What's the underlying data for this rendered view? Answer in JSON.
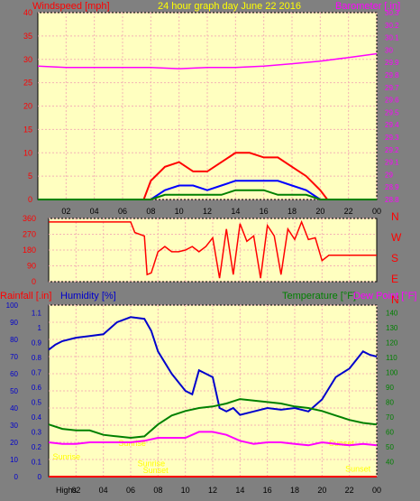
{
  "header": {
    "windspeed_label": "Windspeed [mph]",
    "title": "24 hour graph day   June 22 2016",
    "barometer_label": "Barometer [.in]"
  },
  "footer": {
    "highs_label": "Highs"
  },
  "colors": {
    "background": "#808080",
    "plot_bg": "#FFFFC0",
    "grid": "#F4B4B4",
    "wind_gust": "#FF0000",
    "wind_avg": "#0000FF",
    "wind_low": "#008000",
    "barometer": "#FF00FF",
    "direction": "#FF0000",
    "humidity": "#0000CC",
    "temperature": "#008000",
    "dew_point": "#FF00FF",
    "rainfall": "#FF0000",
    "sun_annotation": "#FFFF00"
  },
  "chart_data": [
    {
      "id": "wind_baro",
      "type": "line",
      "title": "24 hour graph day   June 22 2016",
      "xlabel": "",
      "x_ticks": [
        "02",
        "04",
        "06",
        "08",
        "10",
        "12",
        "14",
        "16",
        "18",
        "20",
        "22",
        "00"
      ],
      "xlim_hours": [
        0,
        24
      ],
      "left_axis": {
        "label": "Windspeed [mph]",
        "ylim": [
          0,
          40
        ],
        "ticks": [
          "0",
          "5",
          "10",
          "15",
          "20",
          "25",
          "30",
          "35",
          "40"
        ]
      },
      "right_axis": {
        "label": "Barometer [.in]",
        "ylim": [
          28.8,
          30.3
        ],
        "ticks": [
          "28.8",
          "28.9",
          "29",
          "29.1",
          "29.2",
          "29.3",
          "29.4",
          "29.5",
          "29.6",
          "29.7",
          "29.8",
          "29.9",
          "30",
          "30.1",
          "30.2",
          "30.3"
        ]
      },
      "series": [
        {
          "name": "Barometer",
          "axis": "right",
          "x": [
            0,
            2,
            4,
            6,
            8,
            10,
            12,
            14,
            16,
            18,
            20,
            22,
            24
          ],
          "values": [
            29.87,
            29.86,
            29.86,
            29.86,
            29.86,
            29.85,
            29.86,
            29.86,
            29.87,
            29.89,
            29.91,
            29.94,
            29.97
          ]
        },
        {
          "name": "Gust",
          "axis": "left",
          "x": [
            0,
            7.5,
            8,
            9,
            10,
            11,
            12,
            13,
            14,
            15,
            16,
            17,
            18,
            19,
            20,
            20.5,
            24
          ],
          "values": [
            0,
            0,
            4,
            7,
            8,
            6,
            6,
            8,
            10,
            10,
            9,
            9,
            7,
            5,
            2,
            0,
            0
          ]
        },
        {
          "name": "Average",
          "axis": "left",
          "x": [
            0,
            8,
            9,
            10,
            11,
            12,
            13,
            14,
            15,
            16,
            17,
            18,
            19,
            20,
            24
          ],
          "values": [
            0,
            0,
            2,
            3,
            3,
            2,
            3,
            4,
            4,
            4,
            4,
            3,
            2,
            0,
            0
          ]
        },
        {
          "name": "Low",
          "axis": "left",
          "x": [
            0,
            8,
            9,
            10,
            11,
            12,
            13,
            14,
            15,
            16,
            17,
            18,
            19,
            20,
            24
          ],
          "values": [
            0,
            0,
            1,
            1,
            1,
            1,
            1,
            2,
            2,
            2,
            1,
            1,
            1,
            0,
            0
          ]
        }
      ],
      "grid": true
    },
    {
      "id": "wind_direction",
      "type": "line",
      "xlim_hours": [
        0,
        24
      ],
      "left_ticks": [
        "360",
        "270",
        "180",
        "90",
        "0"
      ],
      "right_labels": [
        "N",
        "W",
        "S",
        "E",
        "N"
      ],
      "ylim_degrees": [
        0,
        360
      ],
      "series": [
        {
          "name": "Direction",
          "x": [
            0,
            6,
            6.3,
            7,
            7.2,
            7.5,
            8,
            8.5,
            9,
            9.5,
            10,
            10.5,
            11,
            11.5,
            12,
            12.5,
            13,
            13.5,
            14,
            14.5,
            15,
            15.5,
            16,
            16.5,
            17,
            17.5,
            18,
            18.5,
            19,
            19.5,
            20,
            20.5,
            24
          ],
          "values": [
            340,
            340,
            280,
            260,
            40,
            50,
            170,
            200,
            170,
            170,
            180,
            200,
            170,
            200,
            250,
            20,
            300,
            40,
            330,
            230,
            260,
            20,
            320,
            260,
            40,
            300,
            240,
            340,
            240,
            250,
            120,
            150,
            150
          ]
        }
      ],
      "grid": true
    },
    {
      "id": "temp_hum",
      "type": "line",
      "x_ticks": [
        "02",
        "04",
        "06",
        "08",
        "10",
        "12",
        "14",
        "16",
        "18",
        "20",
        "22",
        "00"
      ],
      "xlim_hours": [
        0,
        24
      ],
      "labels": {
        "rainfall": "Rainfall [.in]",
        "humidity": "Humidity [%]",
        "temperature": "Temperature [°F]",
        "dew_point": "Dew Point [°F]"
      },
      "humidity_axis": {
        "ylim": [
          0,
          100
        ],
        "ticks": [
          "0",
          "10",
          "20",
          "30",
          "40",
          "50",
          "60",
          "70",
          "80",
          "90",
          "100"
        ]
      },
      "rain_axis": {
        "ylim": [
          0,
          1.15
        ],
        "ticks": [
          "0",
          "0.1",
          "0.2",
          "0.3",
          "0.4",
          "0.5",
          "0.6",
          "0.7",
          "0.8",
          "0.9",
          "1",
          "1.1"
        ]
      },
      "temp_axis": {
        "ylim": [
          30,
          145
        ],
        "ticks": [
          "40",
          "50",
          "60",
          "70",
          "80",
          "90",
          "100",
          "110",
          "120",
          "130",
          "140"
        ]
      },
      "series": [
        {
          "name": "Humidity",
          "axis": "humidity",
          "x": [
            0,
            0.5,
            1,
            2,
            3,
            4,
            5,
            6,
            7,
            7.5,
            8,
            9,
            10,
            10.5,
            11,
            11.5,
            12,
            12.5,
            13,
            13.5,
            14,
            15,
            16,
            17,
            18,
            19,
            20,
            21,
            22,
            23,
            23.5,
            24
          ],
          "values": [
            74,
            77,
            79,
            81,
            82,
            83,
            90,
            93,
            92,
            85,
            73,
            60,
            50,
            48,
            62,
            60,
            58,
            40,
            38,
            40,
            36,
            38,
            40,
            39,
            40,
            38,
            45,
            58,
            63,
            73,
            71,
            70
          ]
        },
        {
          "name": "Temperature",
          "axis": "temp",
          "x": [
            0,
            1,
            2,
            3,
            4,
            5,
            6,
            7,
            8,
            9,
            10,
            11,
            12,
            13,
            14,
            15,
            16,
            17,
            18,
            19,
            20,
            21,
            22,
            23,
            24
          ],
          "values": [
            65,
            62,
            61,
            61,
            58,
            57,
            56,
            57,
            65,
            71,
            74,
            76,
            77,
            79,
            82,
            81,
            80,
            79,
            77,
            76,
            74,
            71,
            68,
            66,
            65
          ]
        },
        {
          "name": "Dew Point",
          "axis": "temp",
          "x": [
            0,
            1,
            2,
            3,
            4,
            5,
            6,
            7,
            8,
            9,
            10,
            11,
            12,
            13,
            14,
            15,
            16,
            17,
            18,
            19,
            20,
            21,
            22,
            23,
            24
          ],
          "values": [
            53,
            52,
            52,
            53,
            53,
            53,
            53,
            54,
            56,
            56,
            56,
            60,
            60,
            58,
            54,
            52,
            53,
            53,
            52,
            51,
            53,
            52,
            51,
            52,
            51
          ]
        },
        {
          "name": "Rainfall",
          "axis": "rain",
          "x": [
            0,
            24
          ],
          "values": [
            0,
            0
          ]
        }
      ],
      "annotations": [
        {
          "text": "Sunrise",
          "x": 5.1,
          "y_hum": 18
        },
        {
          "text": "Sunrise",
          "x": 6.5,
          "y_hum": 6
        },
        {
          "text": "Sunset",
          "x": 6.9,
          "y_hum": 2
        },
        {
          "text": "Sunset",
          "x": 20.5,
          "y_hum": 18
        },
        {
          "text": "Sunset",
          "x": 21.7,
          "y_hum": 3
        },
        {
          "text": "Sunrise",
          "x": 0.3,
          "y_hum": 10
        }
      ],
      "grid": true
    }
  ]
}
